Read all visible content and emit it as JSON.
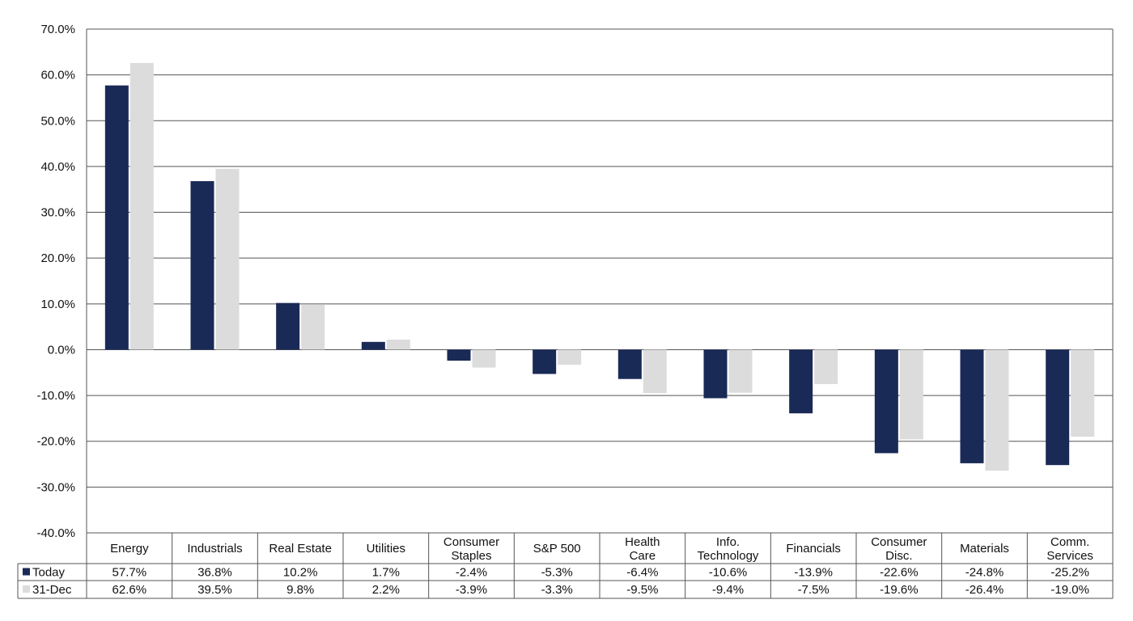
{
  "colors": {
    "today": "#1a2a57",
    "dec31": "#dcdcdc",
    "gridline": "#555555",
    "axis": "#555555",
    "text": "#111111"
  },
  "chart_data": {
    "type": "bar",
    "title": "",
    "xlabel": "",
    "ylabel": "",
    "ylim": [
      -40,
      70
    ],
    "y_tick_step": 10,
    "y_tick_format": "percent_1dp",
    "grid": true,
    "legend_placement": "data-table-left",
    "categories": [
      [
        "Energy"
      ],
      [
        "Industrials"
      ],
      [
        "Real Estate"
      ],
      [
        "Utilities"
      ],
      [
        "Consumer",
        "Staples"
      ],
      [
        "S&P 500"
      ],
      [
        "Health",
        "Care"
      ],
      [
        "Info.",
        "Technology"
      ],
      [
        "Financials"
      ],
      [
        "Consumer",
        "Disc."
      ],
      [
        "Materials"
      ],
      [
        "Comm.",
        "Services"
      ]
    ],
    "series": [
      {
        "name": "Today",
        "values": [
          57.7,
          36.8,
          10.2,
          1.7,
          -2.4,
          -5.3,
          -6.4,
          -10.6,
          -13.9,
          -22.6,
          -24.8,
          -25.2
        ]
      },
      {
        "name": "31-Dec",
        "values": [
          62.6,
          39.5,
          9.8,
          2.2,
          -3.9,
          -3.3,
          -9.5,
          -9.4,
          -7.5,
          -19.6,
          -26.4,
          -19.0
        ]
      }
    ]
  }
}
